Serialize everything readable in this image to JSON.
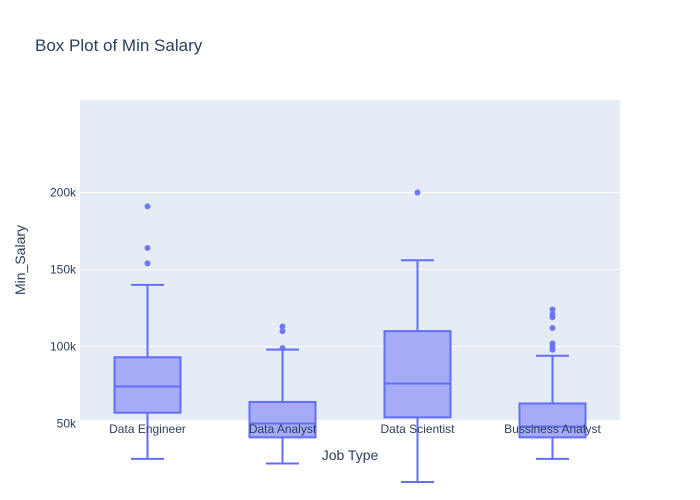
{
  "chart_data": {
    "type": "box",
    "title": "Box Plot of Min Salary",
    "xlabel": "Job Type",
    "ylabel": "Min_Salary",
    "ylim": [
      0,
      210000
    ],
    "grid": true,
    "y_ticks": [
      {
        "value": 50000,
        "label": "50k"
      },
      {
        "value": 100000,
        "label": "100k"
      },
      {
        "value": 150000,
        "label": "150k"
      },
      {
        "value": 200000,
        "label": "200k"
      }
    ],
    "categories": [
      "Data Engineer",
      "Data Analyst",
      "Data Scientist",
      "Bussiness Analyst"
    ],
    "boxes": [
      {
        "category": "Data Engineer",
        "lower_fence": 27000,
        "q1": 57000,
        "median": 74000,
        "q3": 93000,
        "upper_fence": 140000,
        "outliers": [
          154000,
          164000,
          191000
        ]
      },
      {
        "category": "Data Analyst",
        "lower_fence": 24000,
        "q1": 41000,
        "median": 50000,
        "q3": 64000,
        "upper_fence": 98000,
        "outliers": [
          99000,
          110000,
          113000
        ]
      },
      {
        "category": "Data Scientist",
        "lower_fence": 12000,
        "q1": 54000,
        "median": 76000,
        "q3": 110000,
        "upper_fence": 156000,
        "outliers": [
          200000
        ]
      },
      {
        "category": "Bussiness Analyst",
        "lower_fence": 27000,
        "q1": 41000,
        "median": 48000,
        "q3": 63000,
        "upper_fence": 94000,
        "outliers": [
          98000,
          100000,
          102000,
          112000,
          119000,
          121000,
          124000
        ]
      }
    ],
    "colors": {
      "box_fill": "#a5abf7",
      "box_stroke": "#636efa",
      "plot_bg": "#e5ecf6",
      "grid": "#ffffff",
      "text": "#2a3f5f",
      "tick_text": "#2a3f5f"
    }
  }
}
